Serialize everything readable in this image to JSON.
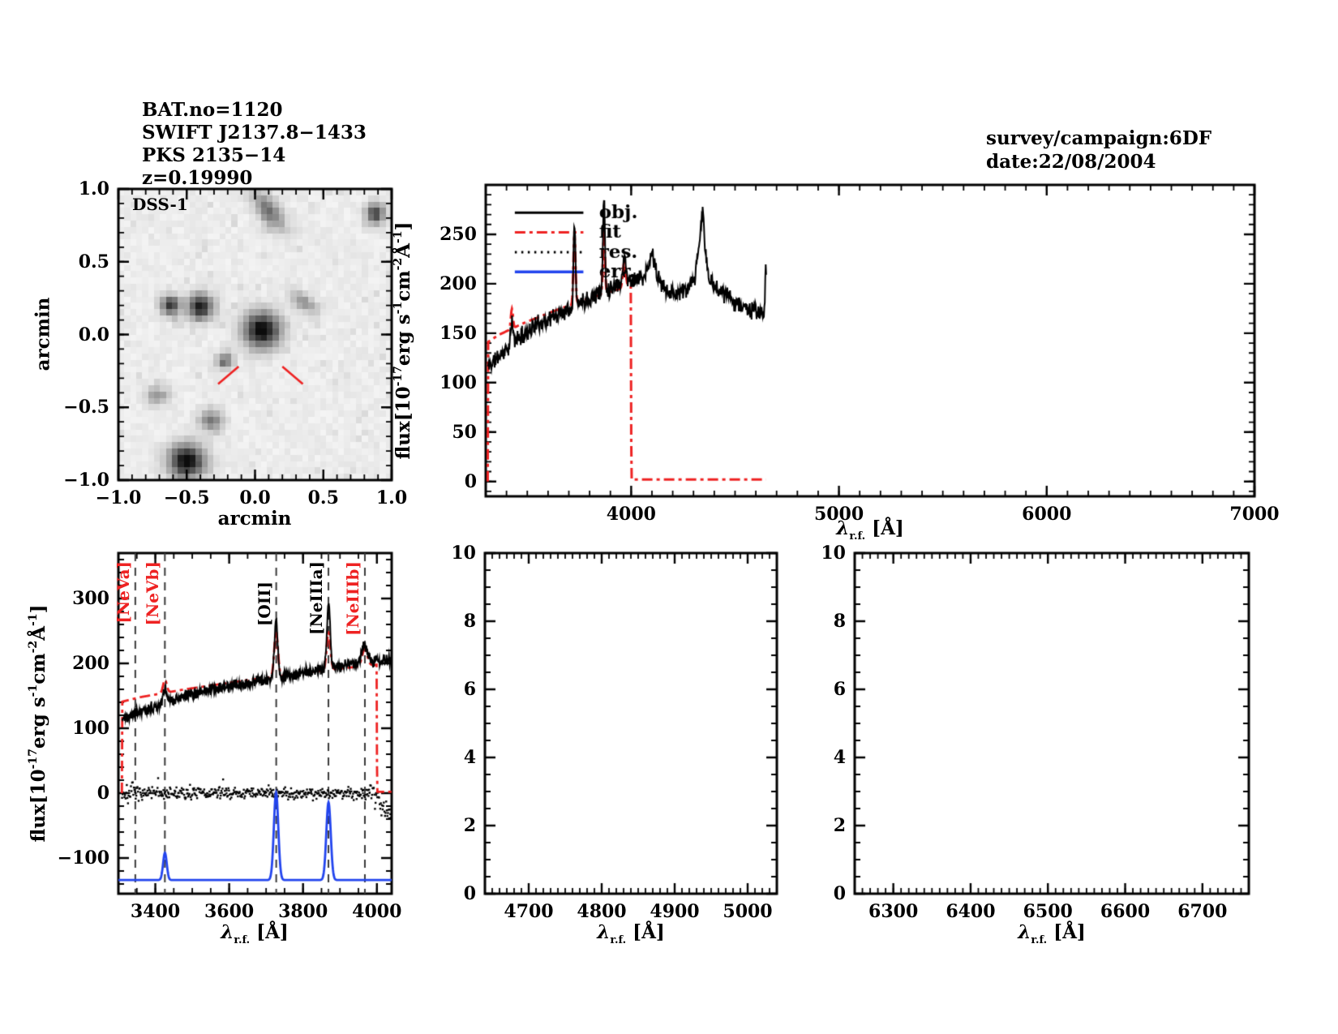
{
  "header": {
    "bat_no": "BAT.no=1120",
    "swift_name": "SWIFT J2137.8−1433",
    "counterpart": "PKS 2135−14",
    "redshift": "z=0.19990"
  },
  "survey": {
    "campaign": "survey/campaign:6DF",
    "date": "date:22/08/2004"
  },
  "colors": {
    "obj": "#000000",
    "fit": "#ee2222",
    "res": "#000000",
    "err": "#2244ee",
    "marker": "#ee2222",
    "dashed_line": "#3a3a3a",
    "frame": "#000000"
  },
  "axis_labels": {
    "flux_segments": [
      {
        "t": "flux[10"
      },
      {
        "t": "-17",
        "sup": true
      },
      {
        "t": "erg s"
      },
      {
        "t": "-1",
        "sup": true
      },
      {
        "t": "cm"
      },
      {
        "t": "-2",
        "sup": true
      },
      {
        "t": "Å"
      },
      {
        "t": "-1",
        "sup": true
      },
      {
        "t": "]"
      }
    ],
    "lambda_segments": [
      {
        "t": "λ",
        "i": true
      },
      {
        "t": "r.f.",
        "sub": true
      },
      {
        "t": " [Å]"
      }
    ]
  },
  "chart_data": [
    {
      "id": "dss",
      "type": "heatmap",
      "title": "DSS-1",
      "xlabel": "arcmin",
      "ylabel": "arcmin",
      "xlim": [
        -1,
        1
      ],
      "ylim": [
        -1,
        1
      ],
      "xticks": [
        -1,
        -0.5,
        0,
        0.5,
        1
      ],
      "xtick_labels": [
        "−1.0",
        "−0.5",
        "0.0",
        "0.5",
        "1.0"
      ],
      "yticks": [
        -1,
        -0.5,
        0,
        0.5,
        1
      ],
      "ytick_labels": [
        "−1.0",
        "−0.5",
        "0.0",
        "0.5",
        "1.0"
      ],
      "xminor": 0.1,
      "yminor": 0.1,
      "sources": [
        [
          0.1,
          0.85,
          0.11,
          0.05,
          -50,
          130
        ],
        [
          0.88,
          0.83,
          0.05,
          0.05,
          0,
          170
        ],
        [
          -0.62,
          0.2,
          0.05,
          0.05,
          0,
          180
        ],
        [
          -0.4,
          0.19,
          0.065,
          0.06,
          0,
          210
        ],
        [
          0.36,
          0.22,
          0.08,
          0.04,
          -35,
          90
        ],
        [
          0.05,
          0.03,
          0.095,
          0.085,
          0,
          235
        ],
        [
          -0.22,
          -0.18,
          0.04,
          0.04,
          0,
          130
        ],
        [
          -0.72,
          -0.42,
          0.05,
          0.05,
          0,
          80
        ],
        [
          -0.32,
          -0.59,
          0.06,
          0.05,
          0,
          120
        ],
        [
          -0.5,
          -0.87,
          0.09,
          0.08,
          0,
          240
        ]
      ],
      "target_markers": [
        [
          -0.27,
          -0.34,
          -0.12,
          -0.22
        ],
        [
          0.2,
          -0.22,
          0.35,
          -0.34
        ]
      ]
    },
    {
      "id": "spectrum_full",
      "type": "line",
      "xlim": [
        3300,
        7000
      ],
      "ylim": [
        -15,
        300
      ],
      "xticks": [
        4000,
        5000,
        6000,
        7000
      ],
      "xtick_labels": [
        "4000",
        "5000",
        "6000",
        "7000"
      ],
      "yticks": [
        0,
        50,
        100,
        150,
        200,
        250
      ],
      "ytick_labels": [
        "0",
        "50",
        "100",
        "150",
        "200",
        "250"
      ],
      "xminor": 100,
      "yminor": 10,
      "legend": {
        "entries": [
          {
            "label": "obj.",
            "series": "obj"
          },
          {
            "label": "fit",
            "series": "fit"
          },
          {
            "label": "res.",
            "series": "res"
          },
          {
            "label": "err.",
            "series": "err"
          }
        ],
        "x_line": [
          3440,
          3770
        ],
        "x_text": 3845,
        "y_values": [
          272,
          252,
          232,
          212
        ]
      },
      "series": {
        "obj": {
          "color": "#000000",
          "style": "solid",
          "noise_amp": 7,
          "range": [
            3310,
            4651
          ],
          "anchors": [
            [
              3310,
              116
            ],
            [
              3350,
              124
            ],
            [
              3400,
              134
            ],
            [
              3450,
              144
            ],
            [
              3500,
              152
            ],
            [
              3550,
              159
            ],
            [
              3600,
              164
            ],
            [
              3650,
              169
            ],
            [
              3700,
              175
            ],
            [
              3750,
              181
            ],
            [
              3800,
              186
            ],
            [
              3850,
              191
            ],
            [
              3900,
              196
            ],
            [
              3950,
              201
            ],
            [
              4000,
              204
            ],
            [
              4050,
              206
            ],
            [
              4100,
              206
            ],
            [
              4150,
              199
            ],
            [
              4200,
              190
            ],
            [
              4250,
              192
            ],
            [
              4300,
              199
            ],
            [
              4360,
              202
            ],
            [
              4420,
              196
            ],
            [
              4470,
              186
            ],
            [
              4520,
              179
            ],
            [
              4570,
              174
            ],
            [
              4620,
              171
            ],
            [
              4651,
              172
            ]
          ],
          "gaussians": [
            [
              3426,
              5,
              22
            ],
            [
              3727,
              4.5,
              88
            ],
            [
              3869,
              4.5,
              98
            ],
            [
              3967,
              7,
              26
            ],
            [
              4101,
              14,
              24
            ],
            [
              4340,
              17,
              52
            ],
            [
              4344,
              5,
              22
            ],
            [
              4648,
              2.5,
              46
            ]
          ]
        },
        "fit": {
          "color": "#ee2222",
          "style": "dashdot",
          "range": [
            3309.5,
            4650
          ],
          "anchors": [
            [
              3309.5,
              0
            ],
            [
              3310,
              141
            ],
            [
              3360,
              148
            ],
            [
              3420,
              154
            ],
            [
              3480,
              160
            ],
            [
              3540,
              165
            ],
            [
              3600,
              170
            ],
            [
              3660,
              175
            ],
            [
              3720,
              179
            ],
            [
              3780,
              184
            ],
            [
              3840,
              188
            ],
            [
              3900,
              192
            ],
            [
              3950,
              195
            ],
            [
              3999.5,
              198
            ],
            [
              4000.5,
              2
            ],
            [
              4650,
              2
            ]
          ],
          "gaussians": [
            [
              3426,
              5,
              20
            ],
            [
              3727,
              5,
              70
            ],
            [
              3869,
              5,
              58
            ],
            [
              3967,
              7,
              26
            ]
          ]
        },
        "res": {
          "color": "#000000",
          "style": "dotted",
          "baseline": 0,
          "noise_amp": 9,
          "range": [
            3310,
            4038
          ]
        },
        "err": {
          "color": "#2244ee",
          "style": "solid",
          "baseline": -134,
          "range": [
            3300,
            4040
          ],
          "gaussians": [
            [
              3426,
              5,
              42
            ],
            [
              3727,
              6,
              135
            ],
            [
              3869,
              6,
              120
            ]
          ]
        }
      }
    },
    {
      "id": "spectrum_zoom",
      "type": "line",
      "xlim": [
        3300,
        4040
      ],
      "ylim": [
        -155,
        370
      ],
      "xticks": [
        3400,
        3600,
        3800,
        4000
      ],
      "xtick_labels": [
        "3400",
        "3600",
        "3800",
        "4000"
      ],
      "yticks": [
        -100,
        0,
        100,
        200,
        300
      ],
      "ytick_labels": [
        "−100",
        "0",
        "100",
        "200",
        "300"
      ],
      "xminor": 50,
      "yminor": 20,
      "series_ref": "spectrum_full",
      "emission_lines": [
        {
          "label": "[NeVa]",
          "wavelength": 3345.8,
          "color": "#ee2222"
        },
        {
          "label": "[NeVb]",
          "wavelength": 3425.9,
          "color": "#ee2222"
        },
        {
          "label": "[OII]",
          "wavelength": 3727.4,
          "color": "#000000",
          "dy": 25
        },
        {
          "label": "[NeIIIa]",
          "wavelength": 3868.8,
          "color": "#000000"
        },
        {
          "label": "[NeIIIb]",
          "wavelength": 3967.5,
          "color": "#ee2222"
        }
      ]
    },
    {
      "id": "hbeta_window",
      "type": "line",
      "xlim": [
        4640,
        5040
      ],
      "ylim": [
        0,
        10
      ],
      "xticks": [
        4700,
        4800,
        4900,
        5000
      ],
      "xtick_labels": [
        "4700",
        "4800",
        "4900",
        "5000"
      ],
      "yticks": [
        0,
        2,
        4,
        6,
        8,
        10
      ],
      "ytick_labels": [
        "0",
        "2",
        "4",
        "6",
        "8",
        "10"
      ],
      "xminor": 10,
      "yminor": 0.5,
      "series": {}
    },
    {
      "id": "halpha_window",
      "type": "line",
      "xlim": [
        6250,
        6760
      ],
      "ylim": [
        0,
        10
      ],
      "xticks": [
        6300,
        6400,
        6500,
        6600,
        6700
      ],
      "xtick_labels": [
        "6300",
        "6400",
        "6500",
        "6600",
        "6700"
      ],
      "yticks": [
        0,
        2,
        4,
        6,
        8,
        10
      ],
      "ytick_labels": [
        "0",
        "2",
        "4",
        "6",
        "8",
        "10"
      ],
      "xminor": 10,
      "yminor": 0.5,
      "series": {}
    }
  ]
}
